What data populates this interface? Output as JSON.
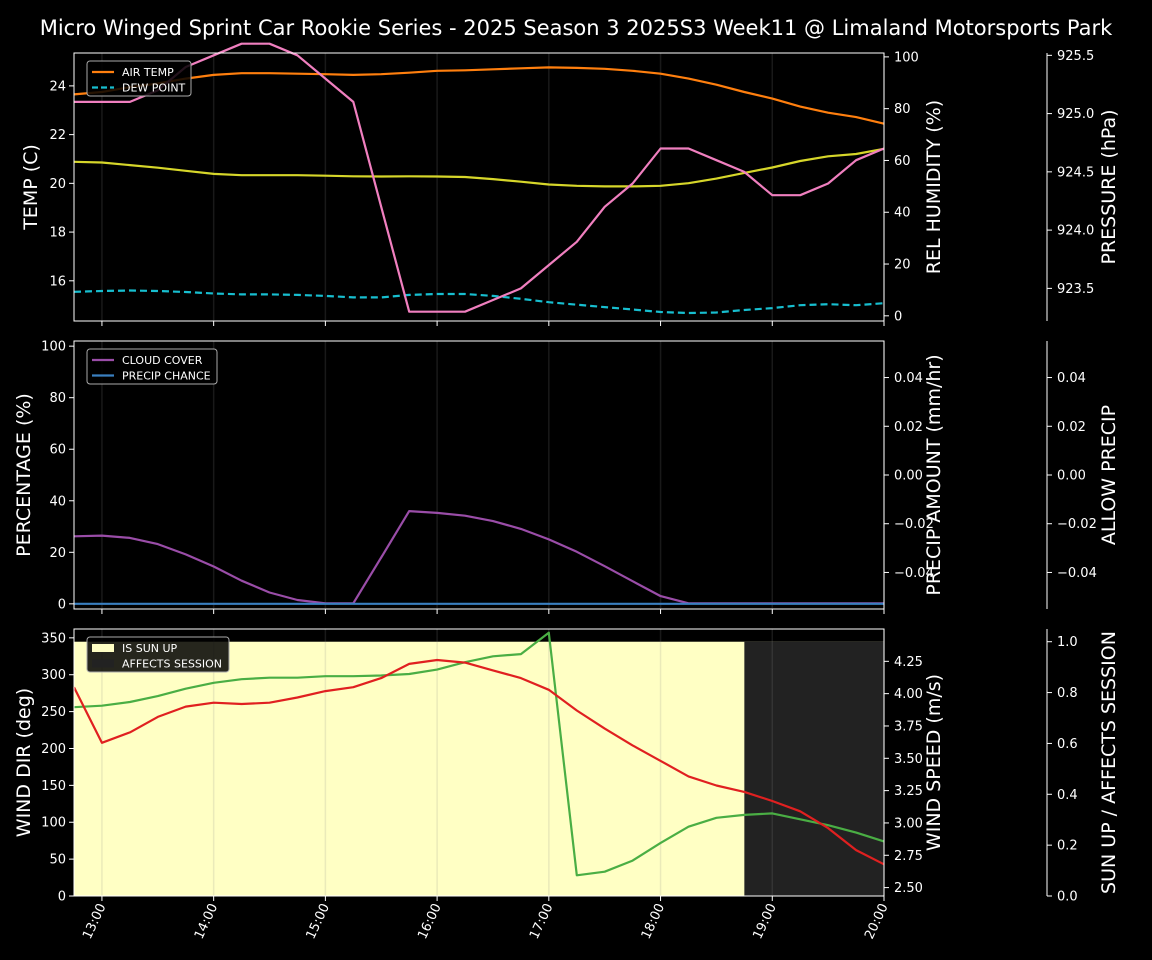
{
  "chart_data": {
    "type": "line",
    "title": "Micro Winged Sprint Car Rookie Series - 2025 Season 3 2025S3 Week11 @ Limaland Motorsports Park",
    "time_axis": {
      "range": [
        "12:45",
        "20:00"
      ],
      "tick_labels": [
        "13:00",
        "14:00",
        "15:00",
        "16:00",
        "17:00",
        "18:00",
        "19:00",
        "20:00"
      ]
    },
    "colors": {
      "air_temp": "#ff7f0e",
      "dew_point": "#17becf",
      "rel_humidity": "#d6d62a",
      "pressure": "#f07fbf",
      "cloud_cover": "#9a4da8",
      "precip_chance": "#3a7fc0",
      "precip_amount_label": "#b0603a",
      "wind_dir": "#4aae44",
      "wind_speed": "#e02020",
      "sun_up": "#ffffc4",
      "affects_session": "#222222"
    },
    "panels": [
      {
        "id": "temp",
        "left_axis": {
          "label": "TEMP (C)",
          "range": [
            14.35,
            25.35
          ],
          "ticks": [
            "16",
            "18",
            "20",
            "22",
            "24"
          ],
          "tick_values": [
            16,
            18,
            20,
            22,
            24
          ]
        },
        "right_axis": {
          "label": "REL HUMIDITY (%)",
          "range": [
            -2,
            101.5
          ],
          "ticks": [
            "0",
            "20",
            "40",
            "60",
            "80",
            "100"
          ],
          "tick_values": [
            0,
            20,
            40,
            60,
            80,
            100
          ]
        },
        "far_axis": {
          "label": "PRESSURE (hPa)",
          "range": [
            923.22,
            925.52
          ],
          "ticks": [
            "923.5",
            "924.0",
            "924.5",
            "925.0",
            "925.5"
          ],
          "tick_values": [
            923.5,
            924.0,
            924.5,
            925.0,
            925.5
          ]
        },
        "legend": [
          "AIR TEMP",
          "DEW POINT"
        ],
        "series": [
          {
            "name": "AIR TEMP",
            "axis": "left",
            "color_key": "air_temp",
            "dash": false,
            "x": [
              "12:45",
              "13:00",
              "13:15",
              "13:30",
              "13:45",
              "14:00",
              "14:15",
              "14:30",
              "14:45",
              "15:00",
              "15:15",
              "15:30",
              "15:45",
              "16:00",
              "16:15",
              "16:30",
              "16:45",
              "17:00",
              "17:15",
              "17:30",
              "17:45",
              "18:00",
              "18:15",
              "18:30",
              "18:45",
              "19:00",
              "19:15",
              "19:30",
              "19:45",
              "20:00"
            ],
            "y": [
              23.65,
              23.75,
              23.95,
              24.1,
              24.3,
              24.45,
              24.52,
              24.52,
              24.5,
              24.48,
              24.45,
              24.48,
              24.54,
              24.62,
              24.64,
              24.68,
              24.72,
              24.76,
              24.74,
              24.7,
              24.62,
              24.5,
              24.3,
              24.05,
              23.75,
              23.48,
              23.15,
              22.9,
              22.72,
              22.45
            ]
          },
          {
            "name": "DEW POINT",
            "axis": "left",
            "color_key": "dew_point",
            "dash": true,
            "x": [
              "12:45",
              "13:00",
              "13:15",
              "13:30",
              "13:45",
              "14:00",
              "14:15",
              "14:30",
              "14:45",
              "15:00",
              "15:15",
              "15:30",
              "15:45",
              "16:00",
              "16:15",
              "16:30",
              "16:45",
              "17:00",
              "17:15",
              "17:30",
              "17:45",
              "18:00",
              "18:15",
              "18:30",
              "18:45",
              "19:00",
              "19:15",
              "19:30",
              "19:45",
              "20:00"
            ],
            "y": [
              15.55,
              15.58,
              15.6,
              15.58,
              15.54,
              15.48,
              15.44,
              15.44,
              15.42,
              15.38,
              15.32,
              15.32,
              15.42,
              15.46,
              15.46,
              15.38,
              15.26,
              15.12,
              15.02,
              14.92,
              14.82,
              14.72,
              14.68,
              14.7,
              14.8,
              14.88,
              15.0,
              15.04,
              15.0,
              15.08
            ]
          },
          {
            "name": "REL HUMIDITY",
            "axis": "right",
            "color_key": "rel_humidity",
            "dash": false,
            "x": [
              "12:45",
              "13:00",
              "13:15",
              "13:30",
              "13:45",
              "14:00",
              "14:15",
              "14:30",
              "14:45",
              "15:00",
              "15:15",
              "15:30",
              "15:45",
              "16:00",
              "16:15",
              "16:30",
              "16:45",
              "17:00",
              "17:15",
              "17:30",
              "17:45",
              "18:00",
              "18:15",
              "18:30",
              "18:45",
              "19:00",
              "19:15",
              "19:30",
              "19:45",
              "20:00"
            ],
            "y": [
              59.5,
              59.2,
              58.2,
              57.2,
              56.0,
              54.8,
              54.3,
              54.3,
              54.3,
              54.1,
              53.9,
              53.8,
              53.9,
              53.8,
              53.6,
              52.8,
              51.8,
              50.7,
              50.2,
              50.0,
              50.0,
              50.2,
              51.2,
              53.0,
              55.2,
              57.3,
              59.8,
              61.6,
              62.5,
              64.5
            ]
          },
          {
            "name": "PRESSURE",
            "axis": "far",
            "color_key": "pressure",
            "dash": false,
            "x": [
              "12:45",
              "13:00",
              "13:15",
              "13:30",
              "13:45",
              "14:00",
              "14:15",
              "14:30",
              "14:45",
              "15:00",
              "15:15",
              "15:30",
              "15:45",
              "16:00",
              "16:15",
              "16:30",
              "16:45",
              "17:00",
              "17:15",
              "17:30",
              "17:45",
              "18:00",
              "18:15",
              "18:30",
              "18:45",
              "19:00",
              "19:15",
              "19:30",
              "19:45",
              "20:00"
            ],
            "y": [
              925.1,
              925.1,
              925.1,
              925.2,
              925.4,
              925.5,
              925.6,
              925.6,
              925.5,
              925.3,
              925.1,
              924.2,
              923.3,
              923.3,
              923.3,
              923.4,
              923.5,
              923.7,
              923.9,
              924.2,
              924.4,
              924.7,
              924.7,
              924.6,
              924.5,
              924.3,
              924.3,
              924.4,
              924.6,
              924.7
            ]
          }
        ]
      },
      {
        "id": "precip",
        "left_axis": {
          "label": "PERCENTAGE (%)",
          "range": [
            -2,
            102
          ],
          "ticks": [
            "0",
            "20",
            "40",
            "60",
            "80",
            "100"
          ],
          "tick_values": [
            0,
            20,
            40,
            60,
            80,
            100
          ]
        },
        "right_axis": {
          "label": "PRECIP AMOUNT (mm/hr)",
          "range": [
            -0.055,
            0.055
          ],
          "ticks": [
            "−0.04",
            "−0.02",
            "0.00",
            "0.02",
            "0.04"
          ],
          "tick_values": [
            -0.04,
            -0.02,
            0,
            0.02,
            0.04
          ]
        },
        "far_axis": {
          "label": "ALLOW PRECIP",
          "range": [
            -0.055,
            0.055
          ],
          "ticks": [
            "−0.04",
            "−0.02",
            "0.00",
            "0.02",
            "0.04"
          ],
          "tick_values": [
            -0.04,
            -0.02,
            0,
            0.02,
            0.04
          ]
        },
        "legend": [
          "CLOUD COVER",
          "PRECIP CHANCE"
        ],
        "series": [
          {
            "name": "CLOUD COVER",
            "axis": "left",
            "color_key": "cloud_cover",
            "dash": false,
            "x": [
              "12:45",
              "13:00",
              "13:15",
              "13:30",
              "13:45",
              "14:00",
              "14:15",
              "14:30",
              "14:45",
              "15:00",
              "15:15",
              "15:30",
              "15:45",
              "16:00",
              "16:15",
              "16:30",
              "16:45",
              "17:00",
              "17:15",
              "17:30",
              "17:45",
              "18:00",
              "18:15",
              "18:30",
              "18:45",
              "19:00",
              "19:15",
              "19:30",
              "19:45",
              "20:00"
            ],
            "y": [
              26.2,
              26.5,
              25.6,
              23.2,
              19.2,
              14.5,
              9.0,
              4.4,
              1.5,
              0.2,
              0.2,
              18.0,
              36.0,
              35.3,
              34.2,
              32.1,
              29.1,
              25.0,
              20.2,
              14.6,
              8.8,
              3.0,
              0.2,
              0.2,
              0.2,
              0.2,
              0.2,
              0.2,
              0.2,
              0.2
            ]
          },
          {
            "name": "PRECIP CHANCE",
            "axis": "left",
            "color_key": "precip_chance",
            "dash": false,
            "x": [
              "12:45",
              "20:00"
            ],
            "y": [
              0,
              0
            ]
          }
        ]
      },
      {
        "id": "wind",
        "left_axis": {
          "label": "WIND DIR (deg)",
          "range": [
            0,
            362
          ],
          "ticks": [
            "0",
            "50",
            "100",
            "150",
            "200",
            "250",
            "300",
            "350"
          ],
          "tick_values": [
            0,
            50,
            100,
            150,
            200,
            250,
            300,
            350
          ]
        },
        "right_axis": {
          "label": "WIND SPEED (m/s)",
          "range": [
            2.435,
            4.5
          ],
          "ticks": [
            "2.50",
            "2.75",
            "3.00",
            "3.25",
            "3.50",
            "3.75",
            "4.00",
            "4.25"
          ],
          "tick_values": [
            2.5,
            2.75,
            3.0,
            3.25,
            3.5,
            3.75,
            4.0,
            4.25
          ]
        },
        "far_axis": {
          "label": "SUN UP / AFFECTS SESSION",
          "range": [
            0,
            1.05
          ],
          "ticks": [
            "0.0",
            "0.2",
            "0.4",
            "0.6",
            "0.8",
            "1.0"
          ],
          "tick_values": [
            0,
            0.2,
            0.4,
            0.6,
            0.8,
            1.0
          ]
        },
        "legend": [
          "IS SUN UP",
          "AFFECTS SESSION"
        ],
        "sun_up": {
          "from": "12:45",
          "to": "20:00",
          "value": 1
        },
        "affects_session": {
          "from": "18:45",
          "to": "20:00",
          "value": 1
        },
        "series": [
          {
            "name": "WIND DIR",
            "axis": "left",
            "color_key": "wind_dir",
            "dash": false,
            "x": [
              "12:45",
              "13:00",
              "13:15",
              "13:30",
              "13:45",
              "14:00",
              "14:15",
              "14:30",
              "14:45",
              "15:00",
              "15:15",
              "15:30",
              "15:45",
              "16:00",
              "16:15",
              "16:30",
              "16:45",
              "17:00",
              "17:15",
              "17:30",
              "17:45",
              "18:00",
              "18:15",
              "18:30",
              "18:45",
              "19:00",
              "19:15",
              "19:30",
              "19:45",
              "20:00"
            ],
            "y": [
              256,
              258,
              263,
              271,
              281,
              289,
              294,
              296,
              296,
              298,
              298,
              299,
              301,
              307,
              317,
              325,
              328,
              357,
              28,
              33,
              48,
              72,
              94,
              106,
              110,
              112,
              104,
              96,
              86,
              74
            ]
          },
          {
            "name": "WIND SPEED",
            "axis": "right",
            "color_key": "wind_speed",
            "dash": false,
            "x": [
              "12:45",
              "13:00",
              "13:15",
              "13:30",
              "13:45",
              "14:00",
              "14:15",
              "14:30",
              "14:45",
              "15:00",
              "15:15",
              "15:30",
              "15:45",
              "16:00",
              "16:15",
              "16:30",
              "16:45",
              "17:00",
              "17:15",
              "17:30",
              "17:45",
              "18:00",
              "18:15",
              "18:30",
              "18:45",
              "19:00",
              "19:15",
              "19:30",
              "19:45",
              "20:00"
            ],
            "y": [
              4.05,
              3.62,
              3.7,
              3.82,
              3.9,
              3.93,
              3.92,
              3.93,
              3.97,
              4.02,
              4.05,
              4.12,
              4.23,
              4.26,
              4.24,
              4.18,
              4.12,
              4.03,
              3.87,
              3.73,
              3.6,
              3.48,
              3.36,
              3.29,
              3.24,
              3.17,
              3.09,
              2.96,
              2.79,
              2.68
            ]
          }
        ]
      }
    ]
  }
}
